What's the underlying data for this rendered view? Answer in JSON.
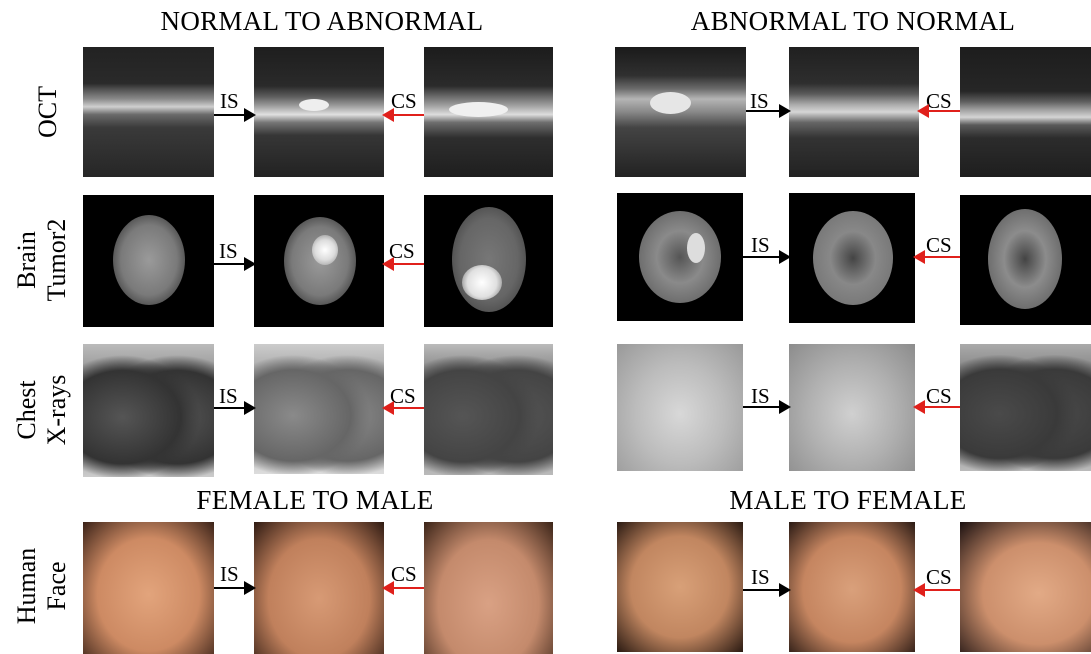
{
  "titles": {
    "normal_to_abnormal": "NORMAL TO ABNORMAL",
    "abnormal_to_normal": "ABNORMAL TO NORMAL",
    "female_to_male": "FEMALE TO MALE",
    "male_to_female": "MALE TO FEMALE"
  },
  "rows": [
    {
      "label_line1": "OCT",
      "label_line2": ""
    },
    {
      "label_line1": "Brain",
      "label_line2": "Tumor2"
    },
    {
      "label_line1": "Chest",
      "label_line2": "X-rays"
    },
    {
      "label_line1": "Human",
      "label_line2": "Face"
    }
  ],
  "arrow_labels": {
    "is": "IS",
    "cs": "CS"
  },
  "colors": {
    "is_arrow": "#000000",
    "cs_arrow": "#e0201b"
  }
}
